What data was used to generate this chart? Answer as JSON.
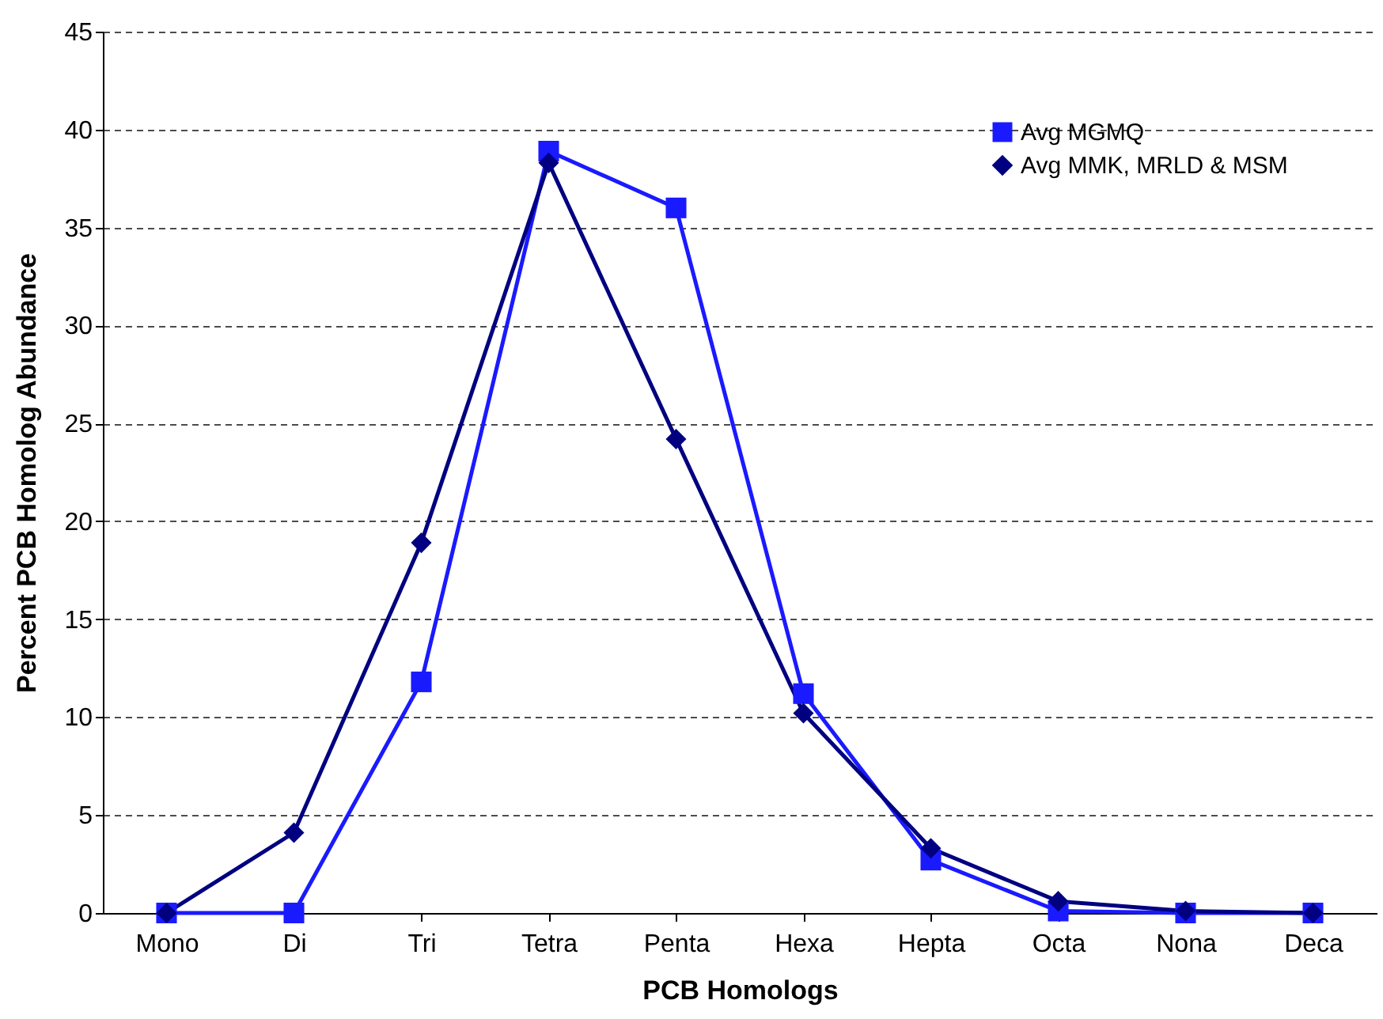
{
  "chart_data": {
    "type": "line",
    "xlabel": "PCB Homologs",
    "ylabel": "Percent PCB Homolog Abundance",
    "categories": [
      "Mono",
      "Di",
      "Tri",
      "Tetra",
      "Penta",
      "Hexa",
      "Hepta",
      "Octa",
      "Nona",
      "Deca"
    ],
    "series": [
      {
        "name": "Avg MGMQ",
        "color": "#1a1aff",
        "marker": "square",
        "values": [
          0,
          0,
          11.8,
          38.9,
          36,
          11.2,
          2.7,
          0.1,
          0,
          0
        ]
      },
      {
        "name": "Avg MMK, MRLD & MSM",
        "color": "#000080",
        "marker": "diamond",
        "values": [
          0,
          4.1,
          18.9,
          38.3,
          24.2,
          10.2,
          3.3,
          0.6,
          0.1,
          0
        ]
      }
    ],
    "ylim": [
      0,
      45
    ],
    "yticks": [
      0,
      5,
      10,
      15,
      20,
      25,
      30,
      35,
      40,
      45
    ],
    "grid": "y",
    "legend": "top right",
    "line_style": "solid"
  }
}
